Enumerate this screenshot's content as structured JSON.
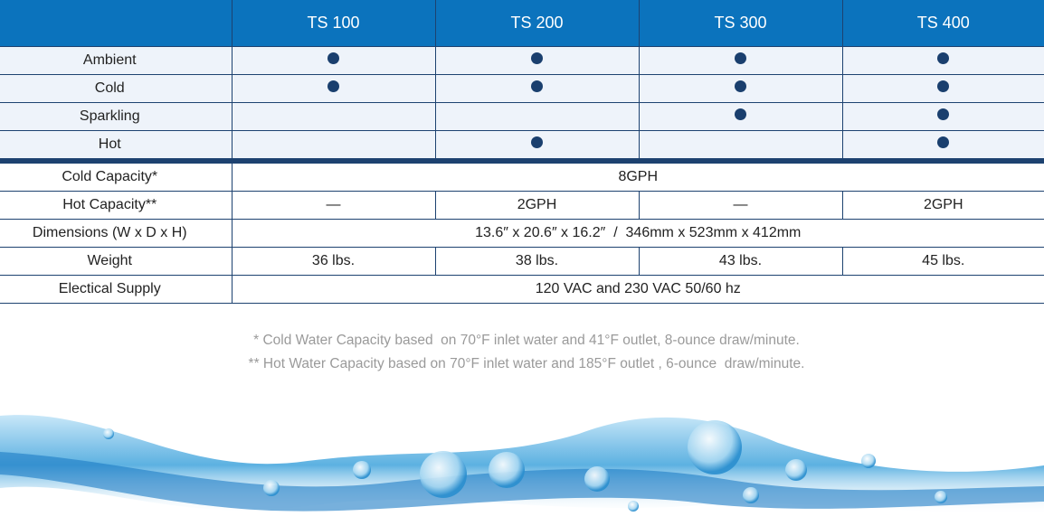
{
  "columns": [
    "TS 100",
    "TS 200",
    "TS 300",
    "TS 400"
  ],
  "features": [
    {
      "label": "Ambient",
      "available": [
        true,
        true,
        true,
        true
      ]
    },
    {
      "label": "Cold",
      "available": [
        true,
        true,
        true,
        true
      ]
    },
    {
      "label": "Sparkling",
      "available": [
        false,
        false,
        true,
        true
      ]
    },
    {
      "label": "Hot",
      "available": [
        false,
        true,
        false,
        true
      ]
    }
  ],
  "specs": {
    "cold_capacity": {
      "label": "Cold Capacity*",
      "value": "8GPH"
    },
    "hot_capacity": {
      "label": "Hot Capacity**",
      "values": [
        "—",
        "2GPH",
        "—",
        "2GPH"
      ]
    },
    "dimensions": {
      "label": "Dimensions (W x D x H)",
      "value": "13.6″ x 20.6″ x 16.2″  /  346mm x 523mm x 412mm"
    },
    "weight": {
      "label": "Weight",
      "values": [
        "36 lbs.",
        "38 lbs.",
        "43 lbs.",
        "45 lbs."
      ]
    },
    "electrical": {
      "label": "Electical Supply",
      "value": "120 VAC and 230 VAC 50/60 hz"
    }
  },
  "footnotes": [
    "* Cold Water Capacity based  on 70°F inlet water and 41°F outlet, 8-ounce draw/minute.",
    "** Hot Water Capacity based on 70°F inlet water and 185°F outlet , 6-ounce  draw/minute."
  ],
  "colors": {
    "header": "#0b73bd",
    "border": "#1d4270",
    "dot": "#1a3f6e",
    "row_bg": "#eef3fa"
  }
}
